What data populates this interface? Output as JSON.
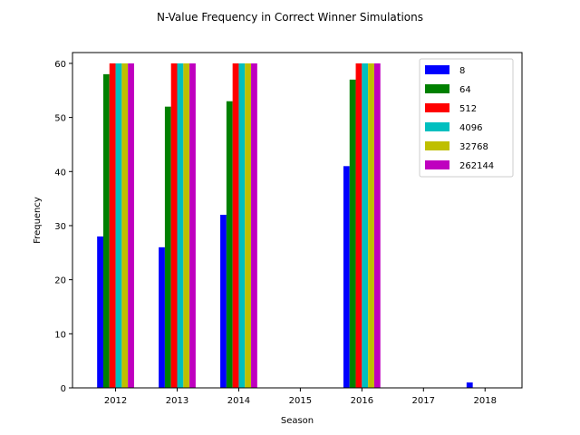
{
  "chart_data": {
    "type": "bar",
    "title": "N-Value Frequency in Correct Winner Simulations",
    "xlabel": "Season",
    "ylabel": "Frequency",
    "categories": [
      "2012",
      "2013",
      "2014",
      "2015",
      "2016",
      "2017",
      "2018"
    ],
    "ylim": [
      0,
      62
    ],
    "yticks": [
      0,
      10,
      20,
      30,
      40,
      50,
      60
    ],
    "legend_position": "top-right",
    "grid": false,
    "series": [
      {
        "name": "8",
        "color": "#0000ff",
        "values": [
          28,
          26,
          32,
          0,
          41,
          0,
          1
        ]
      },
      {
        "name": "64",
        "color": "#008000",
        "values": [
          58,
          52,
          53,
          0,
          57,
          0,
          0
        ]
      },
      {
        "name": "512",
        "color": "#ff0000",
        "values": [
          60,
          60,
          60,
          0,
          60,
          0,
          0
        ]
      },
      {
        "name": "4096",
        "color": "#00bfbf",
        "values": [
          60,
          60,
          60,
          0,
          60,
          0,
          0
        ]
      },
      {
        "name": "32768",
        "color": "#bfbf00",
        "values": [
          60,
          60,
          60,
          0,
          60,
          0,
          0
        ]
      },
      {
        "name": "262144",
        "color": "#bf00bf",
        "values": [
          60,
          60,
          60,
          0,
          60,
          0,
          0
        ]
      }
    ]
  }
}
